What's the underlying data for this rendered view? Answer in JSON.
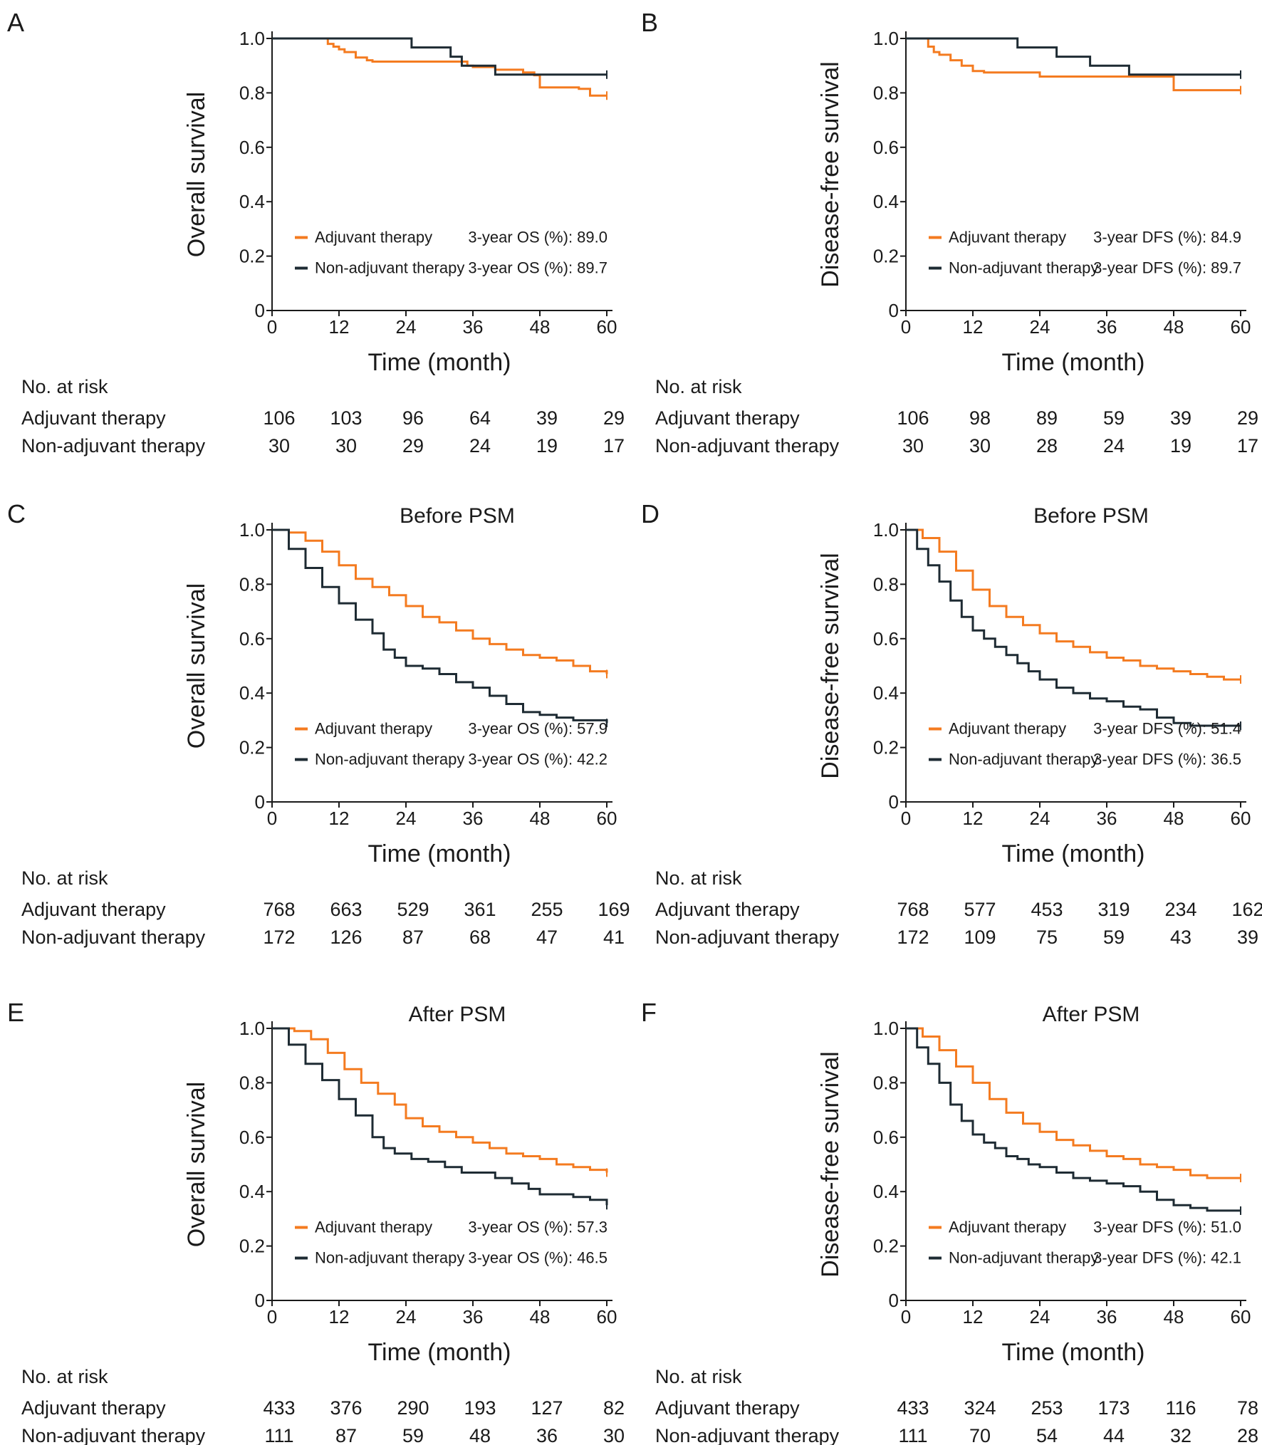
{
  "colors": {
    "adjuvant": "#f47b20",
    "non_adjuvant": "#1e2b33",
    "axis": "#1a1a1a"
  },
  "chart_data": [
    {
      "panel": "A",
      "type": "line",
      "title": "",
      "xlabel": "Time (month)",
      "ylabel": "Overall survival",
      "xlim": [
        0,
        60
      ],
      "ylim": [
        0,
        1
      ],
      "x_ticks": [
        "0",
        "12",
        "24",
        "36",
        "48",
        "60"
      ],
      "y_ticks": [
        "0",
        "0.2",
        "0.4",
        "0.6",
        "0.8",
        "1.0"
      ],
      "legend_position": "bottom-left",
      "series": [
        {
          "name": "Adjuvant therapy",
          "stat": "3-year OS (%): 89.0",
          "x": [
            0,
            9,
            10,
            11,
            12,
            13,
            15,
            17,
            18,
            35,
            36,
            40,
            45,
            47,
            48,
            55,
            57,
            60
          ],
          "y": [
            1.0,
            1.0,
            0.98,
            0.97,
            0.96,
            0.95,
            0.93,
            0.92,
            0.915,
            0.9,
            0.895,
            0.885,
            0.875,
            0.865,
            0.82,
            0.815,
            0.79,
            0.79
          ]
        },
        {
          "name": "Non-adjuvant therapy",
          "stat": "3-year OS (%): 89.7",
          "x": [
            0,
            25,
            25.01,
            32,
            32.01,
            34,
            34.01,
            40,
            40.01,
            60
          ],
          "y": [
            1.0,
            1.0,
            0.967,
            0.967,
            0.933,
            0.933,
            0.9,
            0.9,
            0.867,
            0.867
          ]
        }
      ],
      "risk_table": {
        "header": "No. at risk",
        "rows": [
          {
            "label": "Adjuvant therapy",
            "values": [
              "106",
              "103",
              "96",
              "64",
              "39",
              "29"
            ]
          },
          {
            "label": "Non-adjuvant therapy",
            "values": [
              "30",
              "30",
              "29",
              "24",
              "19",
              "17"
            ]
          }
        ]
      }
    },
    {
      "panel": "B",
      "type": "line",
      "title": "",
      "xlabel": "Time (month)",
      "ylabel": "Disease-free survival",
      "xlim": [
        0,
        60
      ],
      "ylim": [
        0,
        1
      ],
      "x_ticks": [
        "0",
        "12",
        "24",
        "36",
        "48",
        "60"
      ],
      "y_ticks": [
        "0",
        "0.2",
        "0.4",
        "0.6",
        "0.8",
        "1.0"
      ],
      "legend_position": "bottom-left",
      "series": [
        {
          "name": "Adjuvant therapy",
          "stat": "3-year DFS (%): 84.9",
          "x": [
            0,
            3,
            4,
            5,
            6,
            8,
            10,
            12,
            14,
            24,
            36,
            47,
            48,
            60
          ],
          "y": [
            1.0,
            1.0,
            0.97,
            0.95,
            0.94,
            0.92,
            0.9,
            0.88,
            0.875,
            0.86,
            0.86,
            0.86,
            0.81,
            0.81
          ]
        },
        {
          "name": "Non-adjuvant therapy",
          "stat": "3-year DFS (%): 89.7",
          "x": [
            0,
            20,
            20.01,
            27,
            27.01,
            33,
            33.01,
            40,
            40.01,
            60
          ],
          "y": [
            1.0,
            1.0,
            0.967,
            0.967,
            0.933,
            0.933,
            0.9,
            0.9,
            0.867,
            0.867
          ]
        }
      ],
      "risk_table": {
        "header": "No. at risk",
        "rows": [
          {
            "label": "Adjuvant therapy",
            "values": [
              "106",
              "98",
              "89",
              "59",
              "39",
              "29"
            ]
          },
          {
            "label": "Non-adjuvant therapy",
            "values": [
              "30",
              "30",
              "28",
              "24",
              "19",
              "17"
            ]
          }
        ]
      }
    },
    {
      "panel": "C",
      "type": "line",
      "title": "Before PSM",
      "xlabel": "Time (month)",
      "ylabel": "Overall survival",
      "xlim": [
        0,
        60
      ],
      "ylim": [
        0,
        1
      ],
      "x_ticks": [
        "0",
        "12",
        "24",
        "36",
        "48",
        "60"
      ],
      "y_ticks": [
        "0",
        "0.2",
        "0.4",
        "0.6",
        "0.8",
        "1.0"
      ],
      "legend_position": "bottom-left",
      "series": [
        {
          "name": "Adjuvant therapy",
          "stat": "3-year OS (%): 57.9",
          "x": [
            0,
            3,
            6,
            9,
            12,
            15,
            18,
            21,
            24,
            27,
            30,
            33,
            36,
            39,
            42,
            45,
            48,
            51,
            54,
            57,
            60
          ],
          "y": [
            1.0,
            0.99,
            0.96,
            0.92,
            0.87,
            0.82,
            0.79,
            0.76,
            0.72,
            0.68,
            0.66,
            0.63,
            0.6,
            0.58,
            0.56,
            0.54,
            0.53,
            0.52,
            0.5,
            0.48,
            0.47
          ]
        },
        {
          "name": "Non-adjuvant therapy",
          "stat": "3-year OS (%): 42.2",
          "x": [
            0,
            3,
            6,
            9,
            12,
            15,
            18,
            20,
            22,
            24,
            27,
            30,
            33,
            36,
            39,
            42,
            45,
            48,
            51,
            54,
            57,
            60
          ],
          "y": [
            1.0,
            0.93,
            0.86,
            0.79,
            0.73,
            0.67,
            0.62,
            0.56,
            0.53,
            0.5,
            0.49,
            0.47,
            0.44,
            0.42,
            0.39,
            0.36,
            0.33,
            0.32,
            0.31,
            0.3,
            0.3,
            0.29
          ]
        }
      ],
      "risk_table": {
        "header": "No. at risk",
        "rows": [
          {
            "label": "Adjuvant therapy",
            "values": [
              "768",
              "663",
              "529",
              "361",
              "255",
              "169"
            ]
          },
          {
            "label": "Non-adjuvant therapy",
            "values": [
              "172",
              "126",
              "87",
              "68",
              "47",
              "41"
            ]
          }
        ]
      }
    },
    {
      "panel": "D",
      "type": "line",
      "title": "Before PSM",
      "xlabel": "Time (month)",
      "ylabel": "Disease-free survival",
      "xlim": [
        0,
        60
      ],
      "ylim": [
        0,
        1
      ],
      "x_ticks": [
        "0",
        "12",
        "24",
        "36",
        "48",
        "60"
      ],
      "y_ticks": [
        "0",
        "0.2",
        "0.4",
        "0.6",
        "0.8",
        "1.0"
      ],
      "legend_position": "bottom-left",
      "series": [
        {
          "name": "Adjuvant therapy",
          "stat": "3-year DFS (%): 51.4",
          "x": [
            0,
            3,
            6,
            9,
            12,
            15,
            18,
            21,
            24,
            27,
            30,
            33,
            36,
            39,
            42,
            45,
            48,
            51,
            54,
            57,
            60
          ],
          "y": [
            1.0,
            0.97,
            0.92,
            0.85,
            0.78,
            0.72,
            0.68,
            0.65,
            0.62,
            0.59,
            0.57,
            0.55,
            0.53,
            0.52,
            0.5,
            0.49,
            0.48,
            0.47,
            0.46,
            0.45,
            0.45
          ]
        },
        {
          "name": "Non-adjuvant therapy",
          "stat": "3-year DFS (%): 36.5",
          "x": [
            0,
            2,
            4,
            6,
            8,
            10,
            12,
            14,
            16,
            18,
            20,
            22,
            24,
            27,
            30,
            33,
            36,
            39,
            42,
            45,
            48,
            51,
            54,
            57,
            60
          ],
          "y": [
            1.0,
            0.93,
            0.87,
            0.81,
            0.74,
            0.68,
            0.63,
            0.6,
            0.57,
            0.54,
            0.51,
            0.48,
            0.45,
            0.42,
            0.4,
            0.38,
            0.37,
            0.35,
            0.34,
            0.31,
            0.29,
            0.28,
            0.28,
            0.28,
            0.28
          ]
        }
      ],
      "risk_table": {
        "header": "No. at risk",
        "rows": [
          {
            "label": "Adjuvant therapy",
            "values": [
              "768",
              "577",
              "453",
              "319",
              "234",
              "162"
            ]
          },
          {
            "label": "Non-adjuvant therapy",
            "values": [
              "172",
              "109",
              "75",
              "59",
              "43",
              "39"
            ]
          }
        ]
      }
    },
    {
      "panel": "E",
      "type": "line",
      "title": "After PSM",
      "xlabel": "Time (month)",
      "ylabel": "Overall survival",
      "xlim": [
        0,
        60
      ],
      "ylim": [
        0,
        1
      ],
      "x_ticks": [
        "0",
        "12",
        "24",
        "36",
        "48",
        "60"
      ],
      "y_ticks": [
        "0",
        "0.2",
        "0.4",
        "0.6",
        "0.8",
        "1.0"
      ],
      "legend_position": "bottom-left",
      "series": [
        {
          "name": "Adjuvant therapy",
          "stat": "3-year OS (%): 57.3",
          "x": [
            0,
            4,
            7,
            10,
            13,
            16,
            19,
            22,
            24,
            27,
            30,
            33,
            36,
            39,
            42,
            45,
            48,
            51,
            54,
            57,
            60
          ],
          "y": [
            1.0,
            0.99,
            0.96,
            0.91,
            0.85,
            0.8,
            0.76,
            0.72,
            0.67,
            0.64,
            0.62,
            0.6,
            0.58,
            0.56,
            0.54,
            0.53,
            0.52,
            0.5,
            0.49,
            0.48,
            0.47
          ]
        },
        {
          "name": "Non-adjuvant therapy",
          "stat": "3-year OS (%): 46.5",
          "x": [
            0,
            3,
            6,
            9,
            12,
            15,
            18,
            20,
            22,
            25,
            28,
            31,
            34,
            37,
            40,
            43,
            46,
            48,
            51,
            54,
            57,
            60
          ],
          "y": [
            1.0,
            0.94,
            0.87,
            0.81,
            0.74,
            0.68,
            0.6,
            0.56,
            0.54,
            0.52,
            0.51,
            0.49,
            0.47,
            0.47,
            0.45,
            0.43,
            0.41,
            0.39,
            0.39,
            0.38,
            0.37,
            0.35
          ]
        }
      ],
      "risk_table": {
        "header": "No. at risk",
        "rows": [
          {
            "label": "Adjuvant therapy",
            "values": [
              "433",
              "376",
              "290",
              "193",
              "127",
              "82"
            ]
          },
          {
            "label": "Non-adjuvant therapy",
            "values": [
              "111",
              "87",
              "59",
              "48",
              "36",
              "30"
            ]
          }
        ]
      }
    },
    {
      "panel": "F",
      "type": "line",
      "title": "After PSM",
      "xlabel": "Time (month)",
      "ylabel": "Disease-free survival",
      "xlim": [
        0,
        60
      ],
      "ylim": [
        0,
        1
      ],
      "x_ticks": [
        "0",
        "12",
        "24",
        "36",
        "48",
        "60"
      ],
      "y_ticks": [
        "0",
        "0.2",
        "0.4",
        "0.6",
        "0.8",
        "1.0"
      ],
      "legend_position": "bottom-left",
      "series": [
        {
          "name": "Adjuvant therapy",
          "stat": "3-year DFS (%): 51.0",
          "x": [
            0,
            3,
            6,
            9,
            12,
            15,
            18,
            21,
            24,
            27,
            30,
            33,
            36,
            39,
            42,
            45,
            48,
            51,
            54,
            57,
            60
          ],
          "y": [
            1.0,
            0.97,
            0.92,
            0.86,
            0.8,
            0.74,
            0.69,
            0.65,
            0.62,
            0.59,
            0.57,
            0.55,
            0.53,
            0.52,
            0.5,
            0.49,
            0.48,
            0.46,
            0.45,
            0.45,
            0.45
          ]
        },
        {
          "name": "Non-adjuvant therapy",
          "stat": "3-year DFS (%): 42.1",
          "x": [
            0,
            2,
            4,
            6,
            8,
            10,
            12,
            14,
            16,
            18,
            20,
            22,
            24,
            27,
            30,
            33,
            36,
            39,
            42,
            45,
            48,
            51,
            54,
            57,
            60
          ],
          "y": [
            1.0,
            0.93,
            0.87,
            0.8,
            0.72,
            0.66,
            0.61,
            0.58,
            0.56,
            0.53,
            0.52,
            0.5,
            0.49,
            0.47,
            0.45,
            0.44,
            0.43,
            0.42,
            0.4,
            0.37,
            0.35,
            0.34,
            0.33,
            0.33,
            0.33
          ]
        }
      ],
      "risk_table": {
        "header": "No. at risk",
        "rows": [
          {
            "label": "Adjuvant therapy",
            "values": [
              "433",
              "324",
              "253",
              "173",
              "116",
              "78"
            ]
          },
          {
            "label": "Non-adjuvant therapy",
            "values": [
              "111",
              "70",
              "54",
              "44",
              "32",
              "28"
            ]
          }
        ]
      }
    }
  ]
}
